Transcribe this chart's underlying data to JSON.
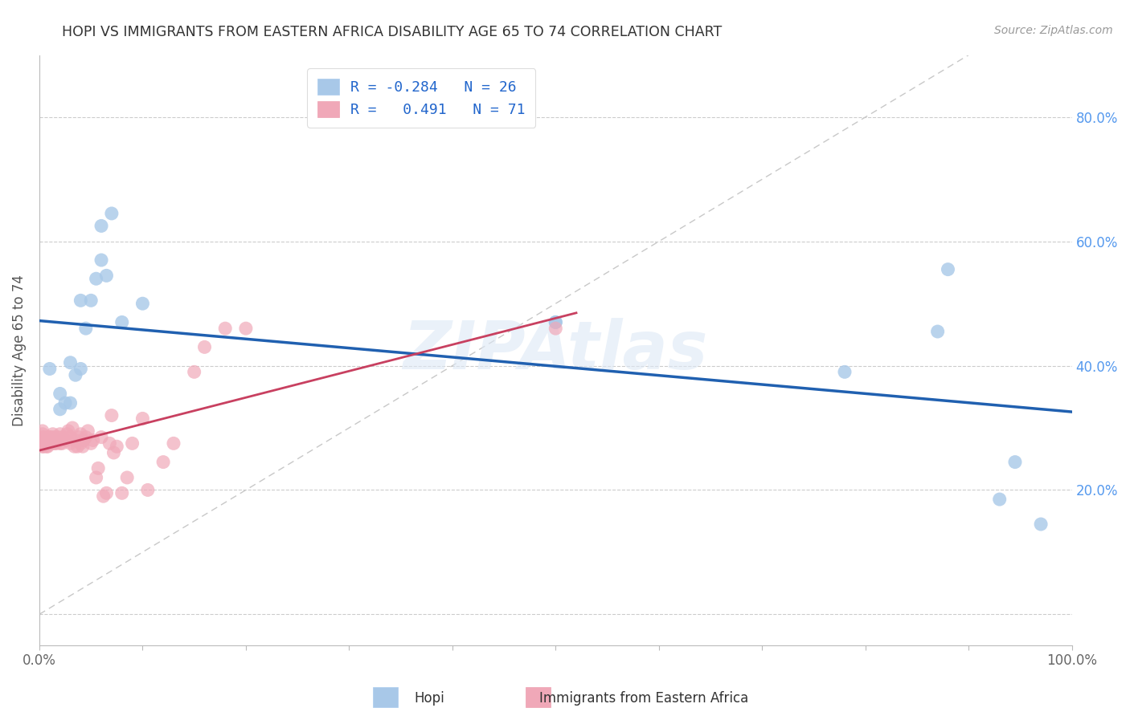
{
  "title": "HOPI VS IMMIGRANTS FROM EASTERN AFRICA DISABILITY AGE 65 TO 74 CORRELATION CHART",
  "source": "Source: ZipAtlas.com",
  "ylabel": "Disability Age 65 to 74",
  "xlim": [
    0.0,
    1.0
  ],
  "ylim": [
    -0.05,
    0.9
  ],
  "hopi_color": "#a8c8e8",
  "eastern_africa_color": "#f0a8b8",
  "hopi_line_color": "#2060b0",
  "eastern_africa_line_color": "#c84060",
  "diagonal_color": "#c8c8c8",
  "legend_R_hopi": "-0.284",
  "legend_N_hopi": "26",
  "legend_R_ea": "0.491",
  "legend_N_ea": "71",
  "watermark": "ZIPAtlas",
  "hopi_x": [
    0.01,
    0.02,
    0.02,
    0.025,
    0.03,
    0.03,
    0.035,
    0.04,
    0.04,
    0.045,
    0.05,
    0.055,
    0.06,
    0.06,
    0.065,
    0.07,
    0.08,
    0.1,
    0.5,
    0.5,
    0.78,
    0.87,
    0.88,
    0.93,
    0.945,
    0.97
  ],
  "hopi_y": [
    0.395,
    0.33,
    0.355,
    0.34,
    0.34,
    0.405,
    0.385,
    0.395,
    0.505,
    0.46,
    0.505,
    0.54,
    0.57,
    0.625,
    0.545,
    0.645,
    0.47,
    0.5,
    0.47,
    0.47,
    0.39,
    0.455,
    0.555,
    0.185,
    0.245,
    0.145
  ],
  "ea_x": [
    0.003,
    0.003,
    0.003,
    0.003,
    0.003,
    0.003,
    0.004,
    0.004,
    0.005,
    0.005,
    0.007,
    0.007,
    0.008,
    0.008,
    0.009,
    0.009,
    0.01,
    0.01,
    0.012,
    0.012,
    0.013,
    0.013,
    0.015,
    0.015,
    0.016,
    0.016,
    0.018,
    0.02,
    0.02,
    0.02,
    0.022,
    0.022,
    0.025,
    0.027,
    0.028,
    0.03,
    0.03,
    0.032,
    0.034,
    0.035,
    0.037,
    0.038,
    0.04,
    0.04,
    0.042,
    0.043,
    0.045,
    0.047,
    0.05,
    0.052,
    0.055,
    0.057,
    0.06,
    0.062,
    0.065,
    0.068,
    0.07,
    0.072,
    0.075,
    0.08,
    0.085,
    0.09,
    0.1,
    0.105,
    0.12,
    0.13,
    0.15,
    0.16,
    0.18,
    0.2,
    0.5
  ],
  "ea_y": [
    0.27,
    0.275,
    0.28,
    0.285,
    0.29,
    0.295,
    0.27,
    0.28,
    0.275,
    0.285,
    0.27,
    0.275,
    0.27,
    0.28,
    0.275,
    0.285,
    0.275,
    0.285,
    0.275,
    0.285,
    0.28,
    0.29,
    0.275,
    0.285,
    0.275,
    0.28,
    0.285,
    0.275,
    0.28,
    0.29,
    0.275,
    0.285,
    0.28,
    0.29,
    0.295,
    0.275,
    0.285,
    0.3,
    0.27,
    0.28,
    0.27,
    0.285,
    0.275,
    0.29,
    0.27,
    0.28,
    0.285,
    0.295,
    0.275,
    0.28,
    0.22,
    0.235,
    0.285,
    0.19,
    0.195,
    0.275,
    0.32,
    0.26,
    0.27,
    0.195,
    0.22,
    0.275,
    0.315,
    0.2,
    0.245,
    0.275,
    0.39,
    0.43,
    0.46,
    0.46,
    0.46
  ]
}
